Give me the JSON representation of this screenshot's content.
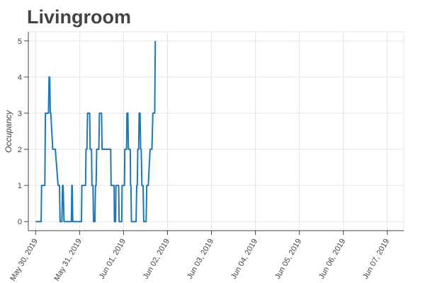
{
  "chart_data": {
    "type": "line",
    "title": "Livingroom",
    "ylabel": "Occupancy",
    "xlabel": "",
    "y_ticks": [
      0,
      1,
      2,
      3,
      4,
      5
    ],
    "x_ticks": [
      "May 30, 2019",
      "May 31, 2019",
      "Jun 01, 2019",
      "Jun 02, 2019",
      "Jun 03, 2019",
      "Jun 04, 2019",
      "Jun 05, 2019",
      "Jun 06, 2019",
      "Jun 07, 2019"
    ],
    "x_range": [
      "2019-05-29 20:00",
      "2019-06-07 09:00"
    ],
    "ylim": [
      -0.25,
      5.25
    ],
    "grid": true,
    "line_color": "#1f77b4",
    "series": [
      {
        "x": [
          "2019-05-30 00:00",
          "2019-05-30 03:00",
          "2019-05-30 03:15",
          "2019-05-30 05:00",
          "2019-05-30 05:20",
          "2019-05-30 07:00",
          "2019-05-30 07:20",
          "2019-05-30 07:40",
          "2019-05-30 08:00",
          "2019-05-30 08:15",
          "2019-05-30 09:20",
          "2019-05-30 09:40",
          "2019-05-30 10:30",
          "2019-05-30 10:45",
          "2019-05-30 12:15",
          "2019-05-30 13:00",
          "2019-05-30 13:20",
          "2019-05-30 14:20",
          "2019-05-30 14:40",
          "2019-05-30 15:00",
          "2019-05-30 15:30",
          "2019-05-30 19:30",
          "2019-05-30 19:45",
          "2019-05-30 20:00",
          "2019-05-30 20:15",
          "2019-05-31 01:00",
          "2019-05-31 01:15",
          "2019-05-31 03:15",
          "2019-05-31 03:30",
          "2019-05-31 04:00",
          "2019-05-31 04:20",
          "2019-05-31 05:30",
          "2019-05-31 05:45",
          "2019-05-31 06:30",
          "2019-05-31 06:45",
          "2019-05-31 07:20",
          "2019-05-31 07:35",
          "2019-05-31 08:20",
          "2019-05-31 08:40",
          "2019-05-31 09:00",
          "2019-05-31 09:20",
          "2019-05-31 10:30",
          "2019-05-31 10:50",
          "2019-05-31 12:00",
          "2019-05-31 12:15",
          "2019-05-31 17:00",
          "2019-05-31 17:10",
          "2019-05-31 18:50",
          "2019-05-31 19:00",
          "2019-05-31 19:40",
          "2019-05-31 19:50",
          "2019-05-31 21:20",
          "2019-05-31 21:35",
          "2019-05-31 23:00",
          "2019-05-31 23:10",
          "2019-06-01 00:30",
          "2019-06-01 00:40",
          "2019-06-01 01:40",
          "2019-06-01 01:50",
          "2019-06-01 02:20",
          "2019-06-01 02:40",
          "2019-06-01 03:40",
          "2019-06-01 03:50",
          "2019-06-01 04:00",
          "2019-06-01 04:20",
          "2019-06-01 06:50",
          "2019-06-01 07:10",
          "2019-06-01 07:30",
          "2019-06-01 07:45",
          "2019-06-01 08:15",
          "2019-06-01 08:30",
          "2019-06-01 09:00",
          "2019-06-01 09:20",
          "2019-06-01 09:40",
          "2019-06-01 10:00",
          "2019-06-01 10:40",
          "2019-06-01 11:00",
          "2019-06-01 12:20",
          "2019-06-01 12:40",
          "2019-06-01 13:30",
          "2019-06-01 14:30",
          "2019-06-01 15:30",
          "2019-06-01 16:00",
          "2019-06-01 17:00",
          "2019-06-01 17:20"
        ],
        "y": [
          0,
          0,
          1,
          1,
          3,
          3,
          4,
          4,
          3,
          3,
          2,
          2,
          2,
          2,
          1,
          1,
          0,
          0,
          1,
          1,
          0,
          0,
          1,
          1,
          0,
          0,
          1,
          1,
          2,
          2,
          3,
          3,
          2,
          2,
          1,
          1,
          0,
          0,
          1,
          1,
          2,
          2,
          3,
          3,
          2,
          2,
          1,
          1,
          0,
          0,
          1,
          1,
          0,
          0,
          1,
          1,
          2,
          2,
          3,
          3,
          2,
          2,
          1,
          1,
          0,
          0,
          1,
          1,
          2,
          2,
          3,
          3,
          2,
          2,
          1,
          1,
          0,
          0,
          1,
          1,
          2,
          2,
          3,
          3,
          5
        ]
      }
    ]
  }
}
